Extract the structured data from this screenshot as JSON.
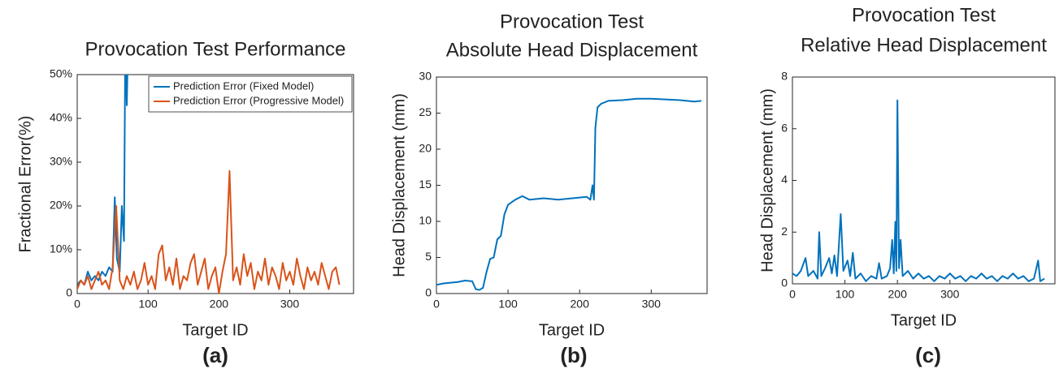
{
  "chart_data": [
    {
      "type": "line",
      "title": "Provocation Test Performance",
      "xlabel": "Target ID",
      "ylabel": "Fractional Error(%)",
      "panel_label": "(a)",
      "xlim": [
        0,
        390
      ],
      "xticks": [
        0,
        100,
        200,
        300
      ],
      "ylim": [
        0,
        50
      ],
      "yticks": [
        0,
        {
          "value": 10,
          "label": "10%"
        },
        {
          "value": 20,
          "label": "20%"
        },
        {
          "value": 30,
          "label": "30%"
        },
        {
          "value": 40,
          "label": "40%"
        },
        {
          "value": 50,
          "label": "50%"
        }
      ],
      "legend": "upper right",
      "series": [
        {
          "name": "Prediction Error (Fixed Model)",
          "color": "#0072bd",
          "x": [
            0,
            5,
            10,
            15,
            20,
            25,
            30,
            35,
            40,
            45,
            50,
            53,
            56,
            60,
            63,
            66,
            68,
            70,
            72
          ],
          "values": [
            2,
            3,
            2,
            5,
            3,
            4,
            3,
            5,
            4,
            6,
            5,
            22,
            8,
            5,
            20,
            12,
            60,
            43,
            60
          ]
        },
        {
          "name": "Prediction Error (Progressive Model)",
          "color": "#d95319",
          "x": [
            0,
            5,
            10,
            15,
            20,
            25,
            30,
            35,
            40,
            45,
            50,
            55,
            60,
            65,
            70,
            75,
            80,
            85,
            90,
            95,
            100,
            105,
            110,
            115,
            120,
            125,
            130,
            135,
            140,
            145,
            150,
            155,
            160,
            165,
            170,
            175,
            180,
            185,
            190,
            195,
            200,
            205,
            210,
            215,
            220,
            225,
            230,
            235,
            240,
            245,
            250,
            255,
            260,
            265,
            270,
            275,
            280,
            285,
            290,
            295,
            300,
            305,
            310,
            315,
            320,
            325,
            330,
            335,
            340,
            345,
            350,
            355,
            360,
            365,
            370
          ],
          "values": [
            1,
            3,
            2,
            4,
            1,
            3,
            5,
            2,
            3,
            1,
            6,
            20,
            3,
            1,
            4,
            2,
            5,
            1,
            3,
            7,
            2,
            4,
            1,
            9,
            11,
            3,
            6,
            2,
            8,
            1,
            4,
            3,
            7,
            9,
            2,
            5,
            8,
            1,
            4,
            6,
            0,
            5,
            9,
            28,
            3,
            6,
            2,
            9,
            4,
            7,
            1,
            5,
            3,
            8,
            2,
            6,
            4,
            1,
            7,
            3,
            5,
            2,
            8,
            4,
            1,
            6,
            3,
            5,
            2,
            7,
            4,
            1,
            5,
            6,
            2
          ]
        }
      ]
    },
    {
      "type": "line",
      "title": "Provocation Test",
      "subtitle": "Absolute Head Displacement",
      "xlabel": "Target ID",
      "ylabel": "Head Displacement (mm)",
      "panel_label": "(b)",
      "xlim": [
        0,
        378
      ],
      "xticks": [
        0,
        100,
        200,
        300
      ],
      "ylim": [
        0,
        30
      ],
      "yticks": [
        0,
        5,
        10,
        15,
        20,
        25,
        30
      ],
      "series": [
        {
          "color": "#0072bd",
          "x": [
            0,
            10,
            20,
            30,
            40,
            50,
            55,
            60,
            65,
            70,
            75,
            80,
            85,
            90,
            95,
            100,
            110,
            120,
            130,
            150,
            170,
            190,
            210,
            215,
            218,
            220,
            222,
            225,
            230,
            240,
            260,
            280,
            300,
            320,
            340,
            360,
            370
          ],
          "values": [
            1.2,
            1.4,
            1.5,
            1.6,
            1.8,
            1.7,
            0.6,
            0.5,
            0.8,
            3,
            4.8,
            5,
            7.5,
            8,
            11,
            12.3,
            13,
            13.5,
            13,
            13.2,
            13,
            13.2,
            13.4,
            13,
            15,
            13,
            23,
            25.8,
            26.3,
            26.7,
            26.8,
            27,
            27,
            26.9,
            26.8,
            26.6,
            26.7
          ]
        }
      ]
    },
    {
      "type": "line",
      "title": "Provocation Test",
      "subtitle": "Relative Head Displacement",
      "xlabel": "Target ID",
      "ylabel": "Head Displacement (mm)",
      "panel_label": "(c)",
      "xlim": [
        0,
        500
      ],
      "xticks": [
        0,
        100,
        200,
        300
      ],
      "ylim": [
        0,
        8
      ],
      "yticks": [
        0,
        2,
        4,
        6,
        8
      ],
      "series": [
        {
          "color": "#0072bd",
          "x": [
            0,
            8,
            16,
            25,
            30,
            40,
            48,
            51,
            55,
            62,
            70,
            75,
            80,
            85,
            92,
            97,
            105,
            110,
            115,
            120,
            130,
            140,
            150,
            160,
            165,
            170,
            180,
            186,
            190,
            193,
            196,
            198,
            200,
            203,
            206,
            210,
            220,
            230,
            240,
            250,
            260,
            270,
            280,
            290,
            300,
            310,
            320,
            330,
            340,
            350,
            360,
            370,
            380,
            390,
            400,
            410,
            420,
            430,
            440,
            450,
            460,
            468,
            472,
            480
          ],
          "values": [
            0.4,
            0.3,
            0.5,
            1.0,
            0.3,
            0.5,
            0.2,
            2.0,
            0.3,
            0.6,
            1.0,
            0.4,
            1.1,
            0.3,
            2.7,
            0.5,
            0.9,
            0.3,
            1.2,
            0.2,
            0.4,
            0.1,
            0.3,
            0.2,
            0.8,
            0.2,
            0.3,
            0.6,
            1.7,
            0.4,
            2.4,
            0.5,
            7.1,
            0.6,
            1.7,
            0.3,
            0.5,
            0.2,
            0.4,
            0.2,
            0.3,
            0.1,
            0.3,
            0.2,
            0.4,
            0.2,
            0.3,
            0.1,
            0.3,
            0.2,
            0.4,
            0.2,
            0.3,
            0.1,
            0.3,
            0.2,
            0.4,
            0.2,
            0.3,
            0.1,
            0.2,
            0.9,
            0.1,
            0.2
          ]
        }
      ]
    }
  ]
}
